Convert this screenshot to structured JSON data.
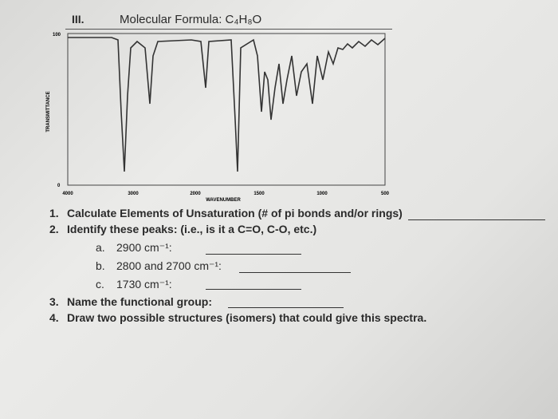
{
  "header": {
    "number": "III.",
    "title": "Molecular Formula: C₄H₈O"
  },
  "spectrum": {
    "y_labels": [
      "100",
      "0"
    ],
    "x_labels": [
      "4000",
      "3000",
      "2000",
      "1500",
      "1000",
      "500"
    ],
    "y_title": "TRANSMITTANCE",
    "x_title": "WAVENUMBER"
  },
  "questions": [
    {
      "number": "1.",
      "text": "Calculate Elements of Unsaturation (# of pi bonds and/or rings)"
    },
    {
      "number": "2.",
      "text": "Identify these peaks: (i.e., is it a C=O, C-O, etc.)",
      "items": [
        {
          "letter": "a.",
          "text": "2900 cm⁻¹:"
        },
        {
          "letter": "b.",
          "text": "2800 and 2700 cm⁻¹:"
        },
        {
          "letter": "c.",
          "text": "1730 cm⁻¹:"
        }
      ]
    },
    {
      "number": "3.",
      "text": "Name the functional group:"
    },
    {
      "number": "4.",
      "text": "Draw two possible structures (isomers) that could give this spectra."
    }
  ]
}
